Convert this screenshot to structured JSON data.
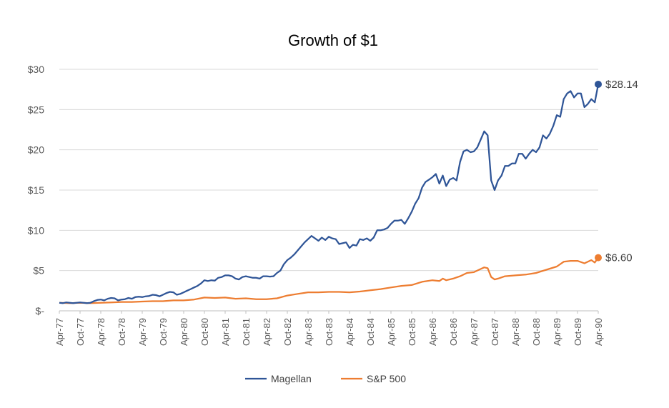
{
  "chart_data": {
    "type": "line",
    "title": "Growth of $1",
    "xlabel": "",
    "ylabel": "",
    "ylim": [
      0,
      30
    ],
    "y_ticks": [
      0,
      5,
      10,
      15,
      20,
      25,
      30
    ],
    "y_tick_labels": [
      "$-",
      "$5",
      "$10",
      "$15",
      "$20",
      "$25",
      "$30"
    ],
    "x_tick_labels": [
      "Apr-77",
      "Oct-77",
      "Apr-78",
      "Oct-78",
      "Apr-79",
      "Oct-79",
      "Apr-80",
      "Oct-80",
      "Apr-81",
      "Oct-81",
      "Apr-82",
      "Oct-82",
      "Apr-83",
      "Oct-83",
      "Apr-84",
      "Oct-84",
      "Apr-85",
      "Oct-85",
      "Apr-86",
      "Oct-86",
      "Apr-87",
      "Oct-87",
      "Apr-88",
      "Oct-88",
      "Apr-89",
      "Oct-89",
      "Apr-90"
    ],
    "grid": true,
    "legend_position": "bottom",
    "series": [
      {
        "name": "Magellan",
        "color": "#2F5597",
        "end_label": "$28.14",
        "points": [
          [
            0,
            1.0
          ],
          [
            1,
            0.95
          ],
          [
            2,
            1.05
          ],
          [
            3,
            1.0
          ],
          [
            4,
            0.95
          ],
          [
            5,
            1.0
          ],
          [
            6,
            1.05
          ],
          [
            7,
            1.0
          ],
          [
            8,
            0.95
          ],
          [
            9,
            1.0
          ],
          [
            10,
            1.2
          ],
          [
            11,
            1.35
          ],
          [
            12,
            1.4
          ],
          [
            13,
            1.3
          ],
          [
            14,
            1.5
          ],
          [
            15,
            1.6
          ],
          [
            16,
            1.55
          ],
          [
            17,
            1.3
          ],
          [
            18,
            1.4
          ],
          [
            19,
            1.45
          ],
          [
            20,
            1.6
          ],
          [
            21,
            1.5
          ],
          [
            22,
            1.7
          ],
          [
            23,
            1.75
          ],
          [
            24,
            1.7
          ],
          [
            25,
            1.8
          ],
          [
            26,
            1.85
          ],
          [
            27,
            2.0
          ],
          [
            28,
            1.95
          ],
          [
            29,
            1.8
          ],
          [
            30,
            2.0
          ],
          [
            31,
            2.2
          ],
          [
            32,
            2.35
          ],
          [
            33,
            2.3
          ],
          [
            34,
            2.0
          ],
          [
            35,
            2.1
          ],
          [
            36,
            2.3
          ],
          [
            37,
            2.5
          ],
          [
            38,
            2.7
          ],
          [
            39,
            2.9
          ],
          [
            40,
            3.1
          ],
          [
            41,
            3.4
          ],
          [
            42,
            3.8
          ],
          [
            43,
            3.7
          ],
          [
            44,
            3.8
          ],
          [
            45,
            3.75
          ],
          [
            46,
            4.1
          ],
          [
            47,
            4.2
          ],
          [
            48,
            4.4
          ],
          [
            49,
            4.4
          ],
          [
            50,
            4.3
          ],
          [
            51,
            4.0
          ],
          [
            52,
            3.9
          ],
          [
            53,
            4.2
          ],
          [
            54,
            4.3
          ],
          [
            55,
            4.2
          ],
          [
            56,
            4.1
          ],
          [
            57,
            4.1
          ],
          [
            58,
            4.0
          ],
          [
            59,
            4.3
          ],
          [
            60,
            4.3
          ],
          [
            61,
            4.25
          ],
          [
            62,
            4.3
          ],
          [
            63,
            4.7
          ],
          [
            64,
            5.0
          ],
          [
            65,
            5.8
          ],
          [
            66,
            6.3
          ],
          [
            67,
            6.6
          ],
          [
            68,
            7.0
          ],
          [
            69,
            7.5
          ],
          [
            70,
            8.0
          ],
          [
            71,
            8.5
          ],
          [
            72,
            8.9
          ],
          [
            73,
            9.3
          ],
          [
            74,
            9.0
          ],
          [
            75,
            8.7
          ],
          [
            76,
            9.1
          ],
          [
            77,
            8.8
          ],
          [
            78,
            9.2
          ],
          [
            79,
            9.0
          ],
          [
            80,
            8.9
          ],
          [
            81,
            8.3
          ],
          [
            82,
            8.4
          ],
          [
            83,
            8.5
          ],
          [
            84,
            7.8
          ],
          [
            85,
            8.2
          ],
          [
            86,
            8.1
          ],
          [
            87,
            8.9
          ],
          [
            88,
            8.8
          ],
          [
            89,
            9.0
          ],
          [
            90,
            8.7
          ],
          [
            91,
            9.1
          ],
          [
            92,
            10.0
          ],
          [
            93,
            10.0
          ],
          [
            94,
            10.1
          ],
          [
            95,
            10.3
          ],
          [
            96,
            10.8
          ],
          [
            97,
            11.2
          ],
          [
            98,
            11.2
          ],
          [
            99,
            11.3
          ],
          [
            100,
            10.8
          ],
          [
            101,
            11.5
          ],
          [
            102,
            12.3
          ],
          [
            103,
            13.3
          ],
          [
            104,
            14.0
          ],
          [
            105,
            15.3
          ],
          [
            106,
            16.0
          ],
          [
            107,
            16.3
          ],
          [
            108,
            16.6
          ],
          [
            109,
            17.0
          ],
          [
            110,
            15.8
          ],
          [
            111,
            16.8
          ],
          [
            112,
            15.5
          ],
          [
            113,
            16.3
          ],
          [
            114,
            16.5
          ],
          [
            115,
            16.2
          ],
          [
            116,
            18.5
          ],
          [
            117,
            19.8
          ],
          [
            118,
            20.0
          ],
          [
            119,
            19.7
          ],
          [
            120,
            19.8
          ],
          [
            121,
            20.3
          ],
          [
            122,
            21.3
          ],
          [
            123,
            22.3
          ],
          [
            124,
            21.8
          ],
          [
            125,
            16.2
          ],
          [
            126,
            15.0
          ],
          [
            127,
            16.2
          ],
          [
            128,
            16.8
          ],
          [
            129,
            18.0
          ],
          [
            130,
            18.0
          ],
          [
            131,
            18.3
          ],
          [
            132,
            18.3
          ],
          [
            133,
            19.5
          ],
          [
            134,
            19.5
          ],
          [
            135,
            18.9
          ],
          [
            136,
            19.5
          ],
          [
            137,
            20.0
          ],
          [
            138,
            19.7
          ],
          [
            139,
            20.3
          ],
          [
            140,
            21.8
          ],
          [
            141,
            21.4
          ],
          [
            142,
            22.0
          ],
          [
            143,
            23.0
          ],
          [
            144,
            24.3
          ],
          [
            145,
            24.1
          ],
          [
            146,
            26.3
          ],
          [
            147,
            27.0
          ],
          [
            148,
            27.3
          ],
          [
            149,
            26.5
          ],
          [
            150,
            27.0
          ],
          [
            151,
            27.0
          ],
          [
            152,
            25.3
          ],
          [
            153,
            25.7
          ],
          [
            154,
            26.3
          ],
          [
            155,
            25.9
          ],
          [
            156,
            28.14
          ]
        ]
      },
      {
        "name": "S&P 500",
        "color": "#ED7D31",
        "end_label": "$6.60",
        "points": [
          [
            0,
            1.0
          ],
          [
            3,
            0.95
          ],
          [
            6,
            1.0
          ],
          [
            9,
            0.95
          ],
          [
            12,
            1.0
          ],
          [
            15,
            1.05
          ],
          [
            18,
            1.1
          ],
          [
            21,
            1.1
          ],
          [
            24,
            1.15
          ],
          [
            27,
            1.2
          ],
          [
            30,
            1.2
          ],
          [
            33,
            1.3
          ],
          [
            36,
            1.3
          ],
          [
            39,
            1.4
          ],
          [
            42,
            1.65
          ],
          [
            45,
            1.6
          ],
          [
            48,
            1.65
          ],
          [
            51,
            1.5
          ],
          [
            54,
            1.55
          ],
          [
            57,
            1.45
          ],
          [
            60,
            1.45
          ],
          [
            63,
            1.55
          ],
          [
            66,
            1.9
          ],
          [
            69,
            2.1
          ],
          [
            72,
            2.3
          ],
          [
            75,
            2.3
          ],
          [
            78,
            2.35
          ],
          [
            81,
            2.35
          ],
          [
            84,
            2.3
          ],
          [
            87,
            2.4
          ],
          [
            90,
            2.55
          ],
          [
            93,
            2.7
          ],
          [
            96,
            2.9
          ],
          [
            99,
            3.1
          ],
          [
            102,
            3.2
          ],
          [
            105,
            3.6
          ],
          [
            108,
            3.8
          ],
          [
            110,
            3.7
          ],
          [
            111,
            4.0
          ],
          [
            112,
            3.8
          ],
          [
            114,
            4.0
          ],
          [
            116,
            4.3
          ],
          [
            118,
            4.7
          ],
          [
            120,
            4.8
          ],
          [
            122,
            5.2
          ],
          [
            123,
            5.4
          ],
          [
            124,
            5.3
          ],
          [
            125,
            4.2
          ],
          [
            126,
            3.9
          ],
          [
            127,
            4.0
          ],
          [
            129,
            4.3
          ],
          [
            132,
            4.4
          ],
          [
            135,
            4.5
          ],
          [
            138,
            4.7
          ],
          [
            141,
            5.1
          ],
          [
            144,
            5.5
          ],
          [
            146,
            6.1
          ],
          [
            148,
            6.2
          ],
          [
            150,
            6.2
          ],
          [
            152,
            5.9
          ],
          [
            154,
            6.3
          ],
          [
            155,
            6.0
          ],
          [
            156,
            6.6
          ]
        ]
      }
    ]
  }
}
